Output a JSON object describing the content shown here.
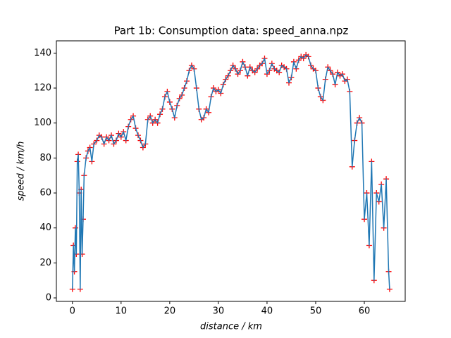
{
  "chart_data": {
    "type": "line",
    "title": "Part 1b: Consumption data: speed_anna.npz",
    "xlabel": "distance / km",
    "ylabel": "speed / km/h",
    "xlim": [
      -3.3,
      68.4
    ],
    "ylim": [
      -2,
      147
    ],
    "xticks": [
      0,
      10,
      20,
      30,
      40,
      50,
      60
    ],
    "yticks": [
      0,
      20,
      40,
      60,
      80,
      100,
      120,
      140
    ],
    "grid": false,
    "series": [
      {
        "color": "#1f77b4",
        "marker_color": "#ff0000",
        "x": [
          0,
          0.2,
          0.4,
          0.6,
          0.8,
          1.0,
          1.2,
          1.4,
          1.6,
          1.8,
          2.0,
          2.2,
          2.4,
          2.8,
          3.2,
          3.6,
          4.0,
          4.4,
          5.0,
          5.5,
          6.0,
          6.5,
          7.0,
          7.5,
          8.0,
          8.5,
          9.0,
          9.5,
          10.0,
          10.5,
          11.0,
          11.5,
          12.0,
          12.5,
          13.0,
          13.5,
          14.0,
          14.5,
          15.0,
          15.5,
          16.0,
          16.5,
          17.0,
          17.5,
          18.0,
          18.5,
          19.0,
          19.5,
          20.0,
          20.5,
          21.0,
          21.5,
          22.0,
          22.5,
          23.0,
          23.5,
          24.0,
          24.5,
          25.0,
          25.5,
          26.0,
          26.5,
          27.0,
          27.5,
          28.0,
          28.5,
          29.0,
          29.5,
          30.0,
          30.5,
          31.0,
          31.5,
          32.0,
          32.5,
          33.0,
          33.5,
          34.0,
          34.5,
          35.0,
          35.5,
          36.0,
          36.5,
          37.0,
          37.5,
          38.0,
          38.5,
          39.0,
          39.5,
          40.0,
          40.5,
          41.0,
          41.5,
          42.0,
          42.5,
          43.0,
          43.5,
          44.0,
          44.5,
          45.0,
          45.5,
          46.0,
          46.5,
          47.0,
          47.5,
          48.0,
          48.5,
          49.0,
          49.5,
          50.0,
          50.5,
          51.0,
          51.5,
          52.0,
          52.5,
          53.0,
          53.5,
          54.0,
          54.5,
          55.0,
          55.5,
          56.0,
          56.5,
          57.0,
          57.5,
          58.0,
          58.5,
          59.0,
          59.5,
          60.0,
          60.5,
          61.0,
          61.5,
          62.0,
          62.5,
          63.0,
          63.5,
          64.0,
          64.5,
          65.0,
          65.2
        ],
        "values": [
          5,
          30,
          15,
          40,
          25,
          78,
          82,
          60,
          5,
          62,
          25,
          45,
          70,
          80,
          84,
          86,
          78,
          88,
          90,
          93,
          92,
          88,
          92,
          90,
          93,
          88,
          90,
          94,
          92,
          95,
          90,
          98,
          102,
          104,
          97,
          93,
          90,
          86,
          88,
          102,
          104,
          100,
          102,
          100,
          105,
          108,
          115,
          118,
          112,
          108,
          103,
          110,
          114,
          116,
          120,
          124,
          130,
          133,
          131,
          120,
          108,
          102,
          103,
          108,
          106,
          115,
          120,
          118,
          119,
          117,
          122,
          125,
          127,
          130,
          133,
          131,
          128,
          130,
          135,
          132,
          127,
          132,
          130,
          129,
          131,
          133,
          134,
          137,
          128,
          130,
          134,
          131,
          130,
          129,
          133,
          132,
          131,
          123,
          126,
          135,
          131,
          136,
          138,
          137,
          139,
          138,
          133,
          131,
          130,
          120,
          115,
          113,
          125,
          132,
          130,
          128,
          122,
          129,
          127,
          128,
          124,
          125,
          118,
          75,
          90,
          100,
          103,
          100,
          45,
          60,
          30,
          78,
          10,
          60,
          55,
          65,
          40,
          68,
          15,
          5
        ]
      }
    ]
  }
}
